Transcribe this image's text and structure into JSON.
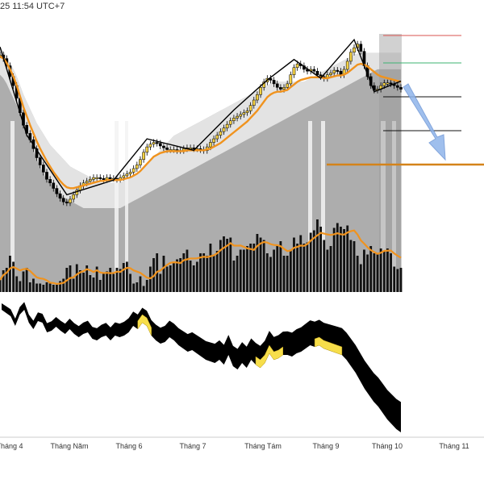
{
  "header": {
    "timestamp": "25 11:54 UTC+7"
  },
  "colors": {
    "candle_bull": "#f5d142",
    "candle_bear": "#000000",
    "ema": "#f0931e",
    "target_line": "#d4831a",
    "arrow": "#8fb4ea",
    "level_red": "#d9534f",
    "level_green": "#3cb371",
    "level_black": "#111111",
    "cloud_light": "#e9e9e9",
    "cloud_dark": "#b3b3b3",
    "volume": "#111111",
    "osc_negative": "#000000",
    "osc_positive": "#f7de4a"
  },
  "chart_data": [
    {
      "type": "candlestick",
      "title": "",
      "xlabel": "",
      "ylabel": "",
      "x_ticks": [
        "Tháng 4",
        "Tháng Năm",
        "Tháng 6",
        "Tháng 7",
        "Tháng Tám",
        "Tháng 9",
        "Tháng 10",
        "Tháng 11"
      ],
      "price_path": [
        48,
        52,
        60,
        72,
        82,
        96,
        112,
        126,
        135,
        142,
        152,
        162,
        170,
        178,
        186,
        190,
        196,
        202,
        207,
        211,
        212,
        208,
        203,
        198,
        193,
        190,
        188,
        186,
        184,
        184,
        185,
        186,
        184,
        185,
        185,
        186,
        184,
        182,
        180,
        178,
        174,
        170,
        164,
        156,
        150,
        147,
        145,
        146,
        149,
        151,
        153,
        153,
        153,
        154,
        154,
        152,
        151,
        151,
        152,
        152,
        153,
        154,
        150,
        145,
        141,
        137,
        133,
        129,
        125,
        121,
        118,
        116,
        114,
        112,
        110,
        104,
        98,
        92,
        84,
        78,
        74,
        76,
        80,
        84,
        86,
        84,
        80,
        70,
        62,
        58,
        60,
        64,
        66,
        64,
        66,
        70,
        72,
        74,
        70,
        68,
        65,
        66,
        70,
        64,
        55,
        45,
        40,
        36,
        44,
        60,
        72,
        82,
        87,
        86,
        82,
        79,
        79,
        80,
        82,
        84,
        86
      ],
      "volume_path": [
        20,
        36,
        40,
        60,
        50,
        26,
        18,
        34,
        40,
        16,
        22,
        14,
        14,
        12,
        16,
        14,
        12,
        12,
        18,
        22,
        40,
        44,
        22,
        46,
        36,
        32,
        44,
        28,
        24,
        42,
        20,
        30,
        34,
        40,
        30,
        40,
        38,
        48,
        50,
        30,
        14,
        16,
        26,
        10,
        20,
        42,
        56,
        64,
        30,
        60,
        42,
        44,
        48,
        54,
        56,
        64,
        70,
        52,
        44,
        50,
        64,
        64,
        60,
        80,
        62,
        68,
        86,
        92,
        88,
        90,
        52,
        60,
        70,
        70,
        76,
        80,
        80,
        96,
        90,
        86,
        64,
        58,
        70,
        78,
        84,
        60,
        60,
        70,
        90,
        80,
        94,
        80,
        82,
        98,
        102,
        120,
        108,
        86,
        70,
        76,
        106,
        114,
        108,
        104,
        110,
        86,
        84,
        60,
        46,
        70,
        62,
        76,
        64,
        64,
        72,
        68,
        72,
        64,
        42,
        38,
        40
      ],
      "oscillator_path": [
        -4,
        -8,
        -12,
        -24,
        -10,
        -4,
        -20,
        -28,
        -18,
        -20,
        -32,
        -30,
        -25,
        -30,
        -34,
        -28,
        -34,
        -38,
        -34,
        -32,
        -40,
        -42,
        -38,
        -36,
        -42,
        -36,
        -38,
        -36,
        -32,
        -24,
        -28,
        -20,
        -24,
        -36,
        -42,
        -46,
        -44,
        -38,
        -42,
        -48,
        -52,
        -56,
        -54,
        -58,
        -62,
        -66,
        -68,
        -70,
        -66,
        -72,
        -60,
        -74,
        -78,
        -70,
        -76,
        -66,
        -72,
        -76,
        -70,
        -58,
        -66,
        -64,
        -60,
        -60,
        -62,
        -58,
        -56,
        -52,
        -48,
        -50,
        -48,
        -52,
        -54,
        -56,
        -58,
        -60,
        -66,
        -74,
        -82,
        -92,
        -102,
        -110,
        -118,
        -124,
        -132,
        -140,
        -146,
        -152,
        -156
      ],
      "ema_path": [
        48,
        50,
        55,
        62,
        70,
        80,
        92,
        104,
        114,
        124,
        133,
        142,
        150,
        157,
        164,
        170,
        176,
        181,
        186,
        190,
        193,
        194,
        194,
        193,
        192,
        191,
        190,
        189,
        188,
        187,
        186,
        186,
        185,
        185,
        185,
        185,
        185,
        184,
        183,
        182,
        180,
        178,
        175,
        171,
        167,
        163,
        159,
        157,
        155,
        154,
        153,
        153,
        153,
        153,
        153,
        153,
        152,
        152,
        152,
        152,
        152,
        152,
        151,
        150,
        148,
        146,
        144,
        141,
        138,
        135,
        132,
        129,
        126,
        123,
        120,
        116,
        112,
        108,
        103,
        98,
        93,
        90,
        88,
        87,
        87,
        86,
        85,
        82,
        79,
        76,
        74,
        73,
        72,
        71,
        71,
        71,
        71,
        72,
        72,
        71,
        70,
        69,
        69,
        68,
        66,
        63,
        60,
        57,
        56,
        57,
        59,
        62,
        65,
        68,
        70,
        71,
        72,
        73,
        74,
        75,
        76
      ],
      "cloud_upper_path": [
        38,
        42,
        48,
        56,
        62,
        70,
        80,
        90,
        98,
        106,
        114,
        122,
        128,
        134,
        140,
        146,
        150,
        154,
        158,
        162,
        166,
        170,
        172,
        174,
        176,
        178,
        180,
        182,
        184,
        186,
        188,
        188,
        188,
        188,
        188,
        188,
        188,
        186,
        184,
        182,
        180,
        178,
        176,
        172,
        168,
        164,
        160,
        156,
        152,
        148,
        144,
        140,
        136,
        134,
        132,
        130,
        128,
        126,
        124,
        122,
        120,
        118,
        116,
        114,
        112,
        110,
        108,
        106,
        104,
        102,
        100,
        98,
        96,
        94,
        92,
        90,
        88,
        86,
        84,
        82,
        80,
        78,
        76,
        76,
        76,
        76,
        76,
        76,
        76,
        76,
        76,
        76,
        74,
        72,
        70,
        68,
        66,
        64,
        62,
        60,
        58,
        56,
        54,
        52,
        50,
        48,
        46,
        45,
        44,
        44,
        44,
        44,
        44,
        44,
        44,
        44,
        44,
        44,
        44,
        44,
        44
      ],
      "cloud_lower_path": [
        52,
        56,
        62,
        70,
        78,
        86,
        96,
        106,
        116,
        126,
        136,
        146,
        154,
        162,
        168,
        172,
        176,
        180,
        184,
        188,
        190,
        192,
        194,
        196,
        198,
        200,
        200,
        200,
        200,
        200,
        200,
        200,
        200,
        200,
        200,
        200,
        200,
        198,
        196,
        194,
        192,
        190,
        188,
        186,
        184,
        182,
        180,
        178,
        176,
        174,
        172,
        170,
        168,
        166,
        164,
        162,
        160,
        158,
        156,
        154,
        152,
        150,
        148,
        146,
        144,
        142,
        140,
        138,
        136,
        134,
        132,
        130,
        128,
        126,
        124,
        122,
        120,
        118,
        116,
        114,
        112,
        110,
        108,
        106,
        104,
        102,
        100,
        98,
        96,
        94,
        92,
        90,
        88,
        86,
        84,
        82,
        80,
        78,
        76,
        74,
        72,
        70,
        68,
        66,
        64,
        62,
        60,
        58,
        56,
        54,
        52,
        50,
        48,
        46,
        46,
        46,
        46,
        46,
        46,
        46,
        46
      ]
    }
  ]
}
